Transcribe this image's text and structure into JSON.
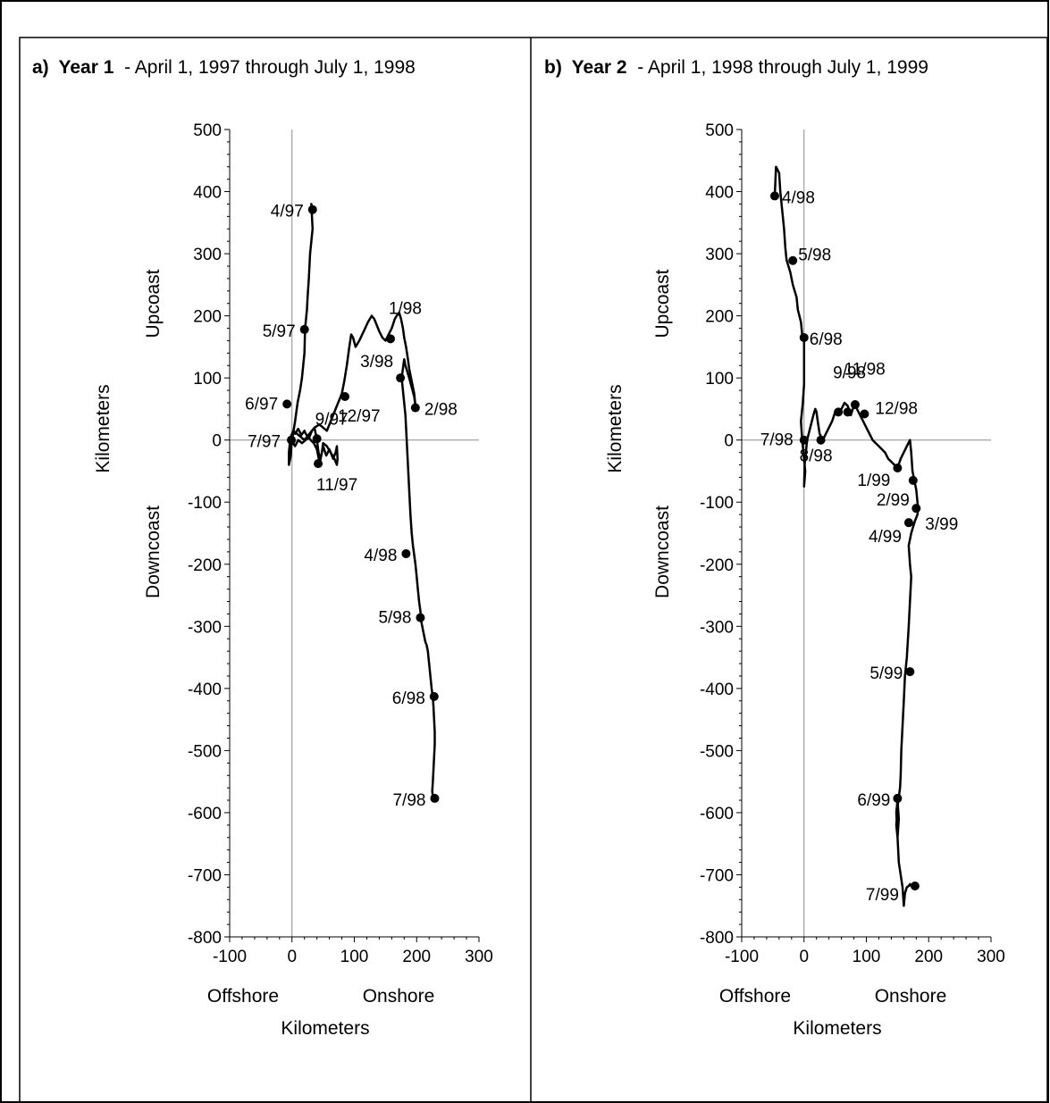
{
  "chart_data": [
    {
      "type": "line",
      "panel_label": "a)",
      "title_bold": "Year 1",
      "title_rest": " - April 1, 1997 through July 1, 1998",
      "xlabel": "Kilometers",
      "ylabel": "Kilometers",
      "x_left_label": "Offshore",
      "x_right_label": "Onshore",
      "y_top_label": "Upcoast",
      "y_bottom_label": "Downcoast",
      "xlim": [
        -100,
        300
      ],
      "ylim": [
        -800,
        500
      ],
      "xticks": [
        -100,
        0,
        100,
        200,
        300
      ],
      "yticks": [
        500,
        400,
        300,
        200,
        100,
        0,
        -100,
        -200,
        -300,
        -400,
        -500,
        -600,
        -700,
        -800
      ],
      "series": [
        {
          "x": [
            33,
            31,
            33,
            29,
            27,
            25,
            24,
            21,
            20,
            16,
            13,
            9,
            5,
            1,
            -1,
            -2,
            -5,
            -5,
            -3,
            0,
            0,
            2,
            5,
            10,
            15,
            20,
            22,
            26,
            30,
            35,
            40,
            44,
            48,
            50,
            55,
            60,
            66,
            70,
            72,
            73,
            72,
            68,
            62,
            56,
            50,
            48,
            45,
            42,
            40,
            38,
            36,
            32,
            28,
            22,
            16,
            10,
            5,
            2,
            0,
            -2,
            -3,
            -2,
            2,
            8,
            14,
            20,
            28,
            36,
            44,
            50,
            56,
            60,
            64,
            68,
            72,
            76,
            80,
            84,
            88,
            92,
            95,
            98,
            102,
            108,
            115,
            122,
            128,
            132,
            136,
            140,
            145,
            150,
            155,
            160,
            165,
            168,
            172,
            175,
            178,
            180,
            183,
            186,
            188,
            190,
            192,
            194,
            196,
            197,
            198,
            196,
            192,
            188,
            185,
            182,
            180,
            178,
            176,
            178,
            180,
            182,
            183,
            184,
            186,
            188,
            190,
            192,
            194,
            196,
            198,
            200,
            202,
            204,
            206,
            207,
            208,
            210,
            212,
            214,
            216,
            218,
            220,
            222,
            224,
            226,
            227,
            228,
            229,
            229,
            228,
            227,
            226,
            225,
            226,
            227,
            228,
            229,
            230
          ],
          "y": [
            370,
            380,
            340,
            300,
            260,
            230,
            210,
            180,
            140,
            100,
            80,
            60,
            30,
            5,
            -10,
            -25,
            -40,
            -20,
            0,
            10,
            5,
            15,
            10,
            18,
            8,
            15,
            10,
            5,
            0,
            -5,
            -15,
            -35,
            -20,
            -10,
            -25,
            -15,
            -30,
            -20,
            -10,
            -30,
            -40,
            -30,
            -20,
            -10,
            -5,
            -20,
            -35,
            -15,
            0,
            10,
            20,
            15,
            5,
            0,
            -5,
            0,
            -10,
            -5,
            0,
            -15,
            -10,
            5,
            15,
            10,
            5,
            0,
            10,
            20,
            25,
            20,
            15,
            25,
            35,
            45,
            55,
            65,
            75,
            95,
            120,
            150,
            170,
            165,
            150,
            160,
            175,
            190,
            200,
            195,
            185,
            175,
            165,
            160,
            170,
            180,
            195,
            200,
            205,
            195,
            180,
            165,
            150,
            130,
            115,
            105,
            95,
            85,
            75,
            65,
            55,
            70,
            85,
            100,
            110,
            120,
            130,
            115,
            100,
            80,
            60,
            40,
            20,
            0,
            -40,
            -80,
            -120,
            -150,
            -170,
            -185,
            -200,
            -220,
            -240,
            -260,
            -275,
            -285,
            -295,
            -305,
            -315,
            -325,
            -330,
            -340,
            -360,
            -380,
            -400,
            -415,
            -430,
            -450,
            -470,
            -490,
            -510,
            -530,
            -550,
            -565,
            -575,
            -580,
            -578,
            -575,
            -577
          ],
          "markers": [
            {
              "label": "4/97",
              "x": 33,
              "y": 371
            },
            {
              "label": "5/97",
              "x": 20,
              "y": 178
            },
            {
              "label": "6/97",
              "x": -8,
              "y": 58
            },
            {
              "label": "7/97",
              "x": -1,
              "y": 0
            },
            {
              "label": "9/97",
              "x": 40,
              "y": 2
            },
            {
              "label": "11/97",
              "x": 42,
              "y": -38
            },
            {
              "label": "12/97",
              "x": 85,
              "y": 70
            },
            {
              "label": "1/98",
              "x": 158,
              "y": 163
            },
            {
              "label": "3/98",
              "x": 174,
              "y": 100
            },
            {
              "label": "2/98",
              "x": 198,
              "y": 52
            },
            {
              "label": "4/98",
              "x": 183,
              "y": -183
            },
            {
              "label": "5/98",
              "x": 206,
              "y": -286
            },
            {
              "label": "6/98",
              "x": 228,
              "y": -413
            },
            {
              "label": "7/98",
              "x": 229,
              "y": -577
            }
          ]
        }
      ]
    },
    {
      "type": "line",
      "panel_label": "b)",
      "title_bold": "Year 2",
      "title_rest": " - April 1, 1998 through July 1, 1999",
      "xlabel": "Kilometers",
      "ylabel": "Kilometers",
      "x_left_label": "Offshore",
      "x_right_label": "Onshore",
      "y_top_label": "Upcoast",
      "y_bottom_label": "Downcoast",
      "xlim": [
        -100,
        300
      ],
      "ylim": [
        -800,
        500
      ],
      "xticks": [
        -100,
        0,
        100,
        200,
        300
      ],
      "yticks": [
        500,
        400,
        300,
        200,
        100,
        0,
        -100,
        -200,
        -300,
        -400,
        -500,
        -600,
        -700,
        -800
      ],
      "series": [
        {
          "x": [
            -47,
            -45,
            -40,
            -38,
            -35,
            -32,
            -30,
            -28,
            -25,
            -22,
            -20,
            -18,
            -15,
            -12,
            -10,
            -5,
            -3,
            0,
            0,
            0,
            -2,
            -5,
            -3,
            -1,
            2,
            0,
            1,
            5,
            10,
            15,
            18,
            20,
            22,
            25,
            30,
            35,
            40,
            45,
            50,
            55,
            60,
            65,
            70,
            75,
            80,
            85,
            90,
            95,
            100,
            105,
            110,
            115,
            120,
            125,
            130,
            135,
            140,
            145,
            150,
            155,
            160,
            165,
            170,
            172,
            174,
            176,
            178,
            180,
            182,
            183,
            182,
            178,
            175,
            172,
            170,
            168,
            170,
            172,
            170,
            168,
            165,
            162,
            160,
            158,
            156,
            155,
            154,
            152,
            150,
            148,
            150,
            152,
            150,
            148,
            150,
            152,
            155,
            158,
            160,
            162,
            165,
            168,
            170,
            172,
            175,
            178,
            180
          ],
          "y": [
            393,
            440,
            430,
            400,
            370,
            340,
            310,
            290,
            280,
            270,
            260,
            250,
            240,
            230,
            210,
            190,
            170,
            165,
            130,
            90,
            60,
            30,
            0,
            -20,
            -50,
            -75,
            -40,
            0,
            20,
            40,
            50,
            45,
            30,
            10,
            0,
            10,
            20,
            30,
            45,
            40,
            50,
            60,
            55,
            40,
            55,
            50,
            40,
            30,
            20,
            10,
            0,
            -5,
            -10,
            -15,
            -20,
            -30,
            -35,
            -40,
            -45,
            -30,
            -20,
            -10,
            0,
            -20,
            -50,
            -60,
            -70,
            -80,
            -100,
            -110,
            -120,
            -130,
            -140,
            -150,
            -160,
            -170,
            -200,
            -220,
            -260,
            -300,
            -350,
            -380,
            -420,
            -460,
            -500,
            -540,
            -560,
            -575,
            -590,
            -620,
            -640,
            -610,
            -580,
            -600,
            -640,
            -680,
            -700,
            -720,
            -750,
            -730,
            -720,
            -718,
            -715,
            -718,
            -720,
            -718,
            -718
          ],
          "markers": [
            {
              "label": "4/98",
              "x": -47,
              "y": 393
            },
            {
              "label": "5/98",
              "x": -18,
              "y": 289
            },
            {
              "label": "6/98",
              "x": 0,
              "y": 165
            },
            {
              "label": "7/98",
              "x": 0,
              "y": 0
            },
            {
              "label": "8/98",
              "x": 27,
              "y": 0
            },
            {
              "label": "9/98",
              "x": 55,
              "y": 45
            },
            {
              "label": "11/98",
              "x": 70,
              "y": 45
            },
            {
              "label": "11/98b",
              "x": 82,
              "y": 57
            },
            {
              "label": "12/98",
              "x": 97,
              "y": 42
            },
            {
              "label": "1/99",
              "x": 150,
              "y": -45
            },
            {
              "label": "2/99",
              "x": 175,
              "y": -65
            },
            {
              "label": "3/99",
              "x": 180,
              "y": -110
            },
            {
              "label": "4/99",
              "x": 168,
              "y": -133
            },
            {
              "label": "5/99",
              "x": 170,
              "y": -373
            },
            {
              "label": "6/99",
              "x": 150,
              "y": -577
            },
            {
              "label": "7/99",
              "x": 178,
              "y": -718
            }
          ]
        }
      ]
    }
  ]
}
